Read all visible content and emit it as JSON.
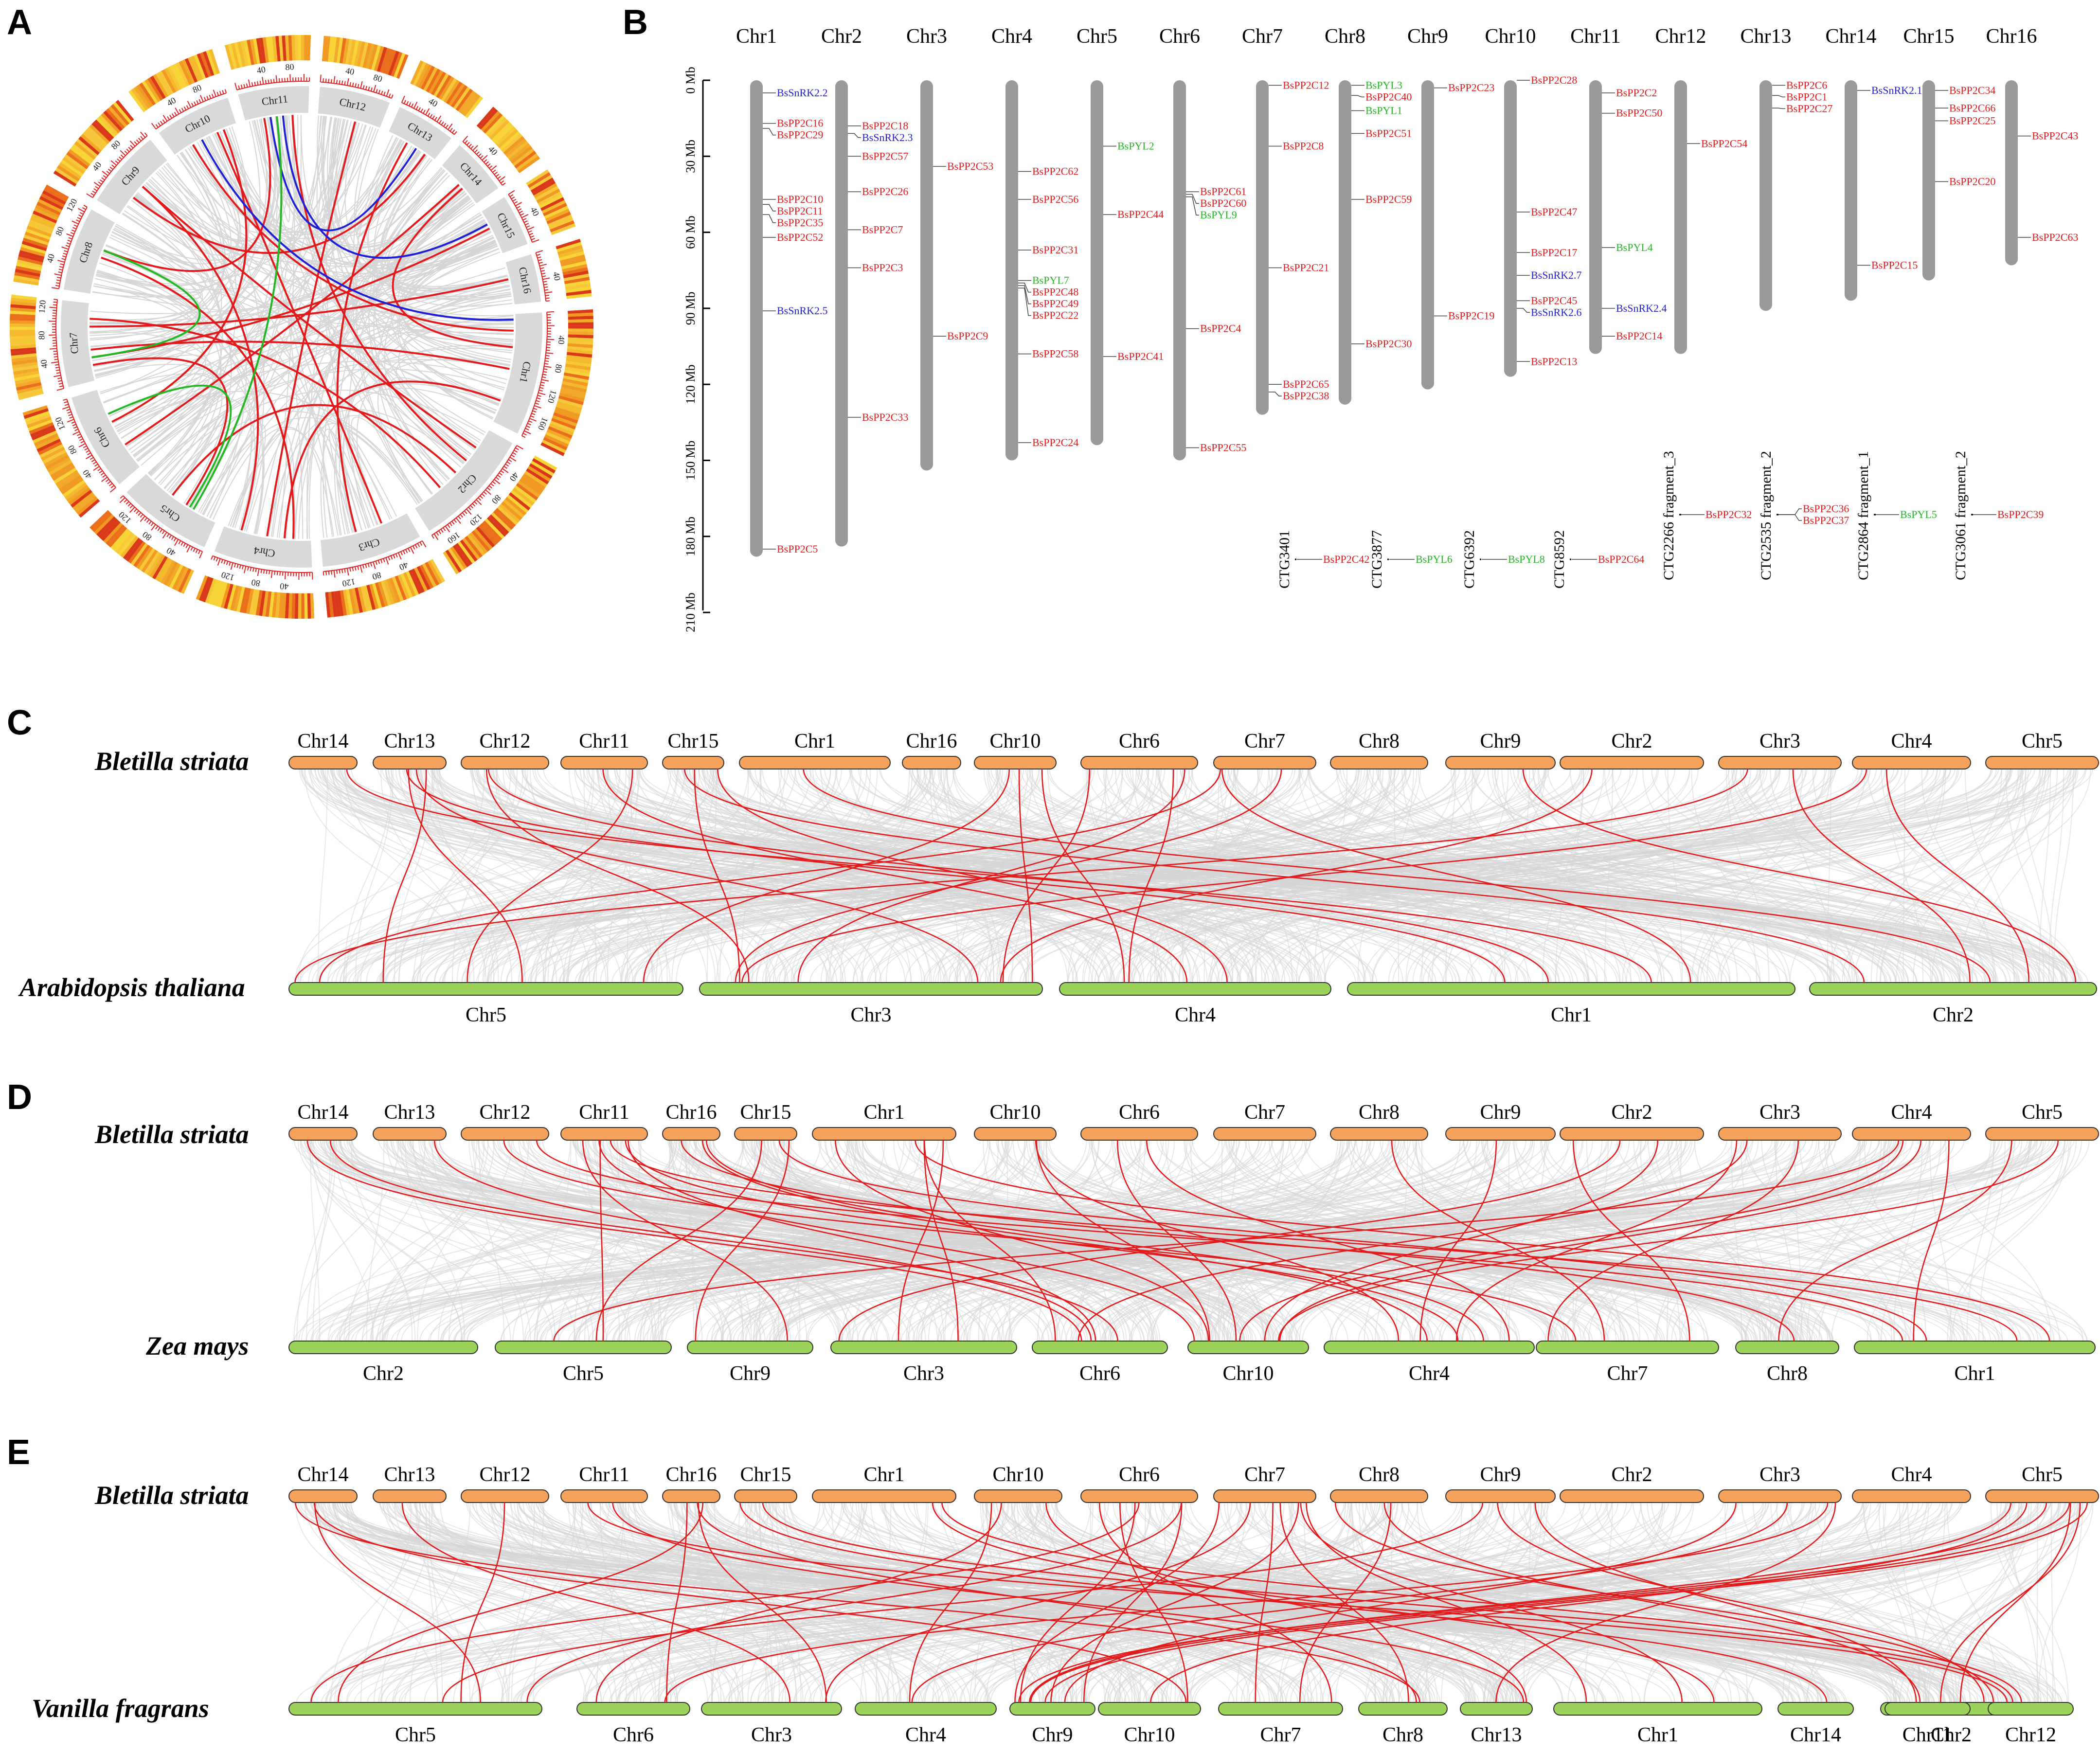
{
  "panels": {
    "a": {
      "letter": "A",
      "chromosomes": [
        {
          "name": "Chr1",
          "ticks": [
            "40",
            "80",
            "120",
            "160"
          ]
        },
        {
          "name": "Chr2",
          "ticks": [
            "40",
            "80",
            "120",
            "160"
          ]
        },
        {
          "name": "Chr3",
          "ticks": [
            "40",
            "80",
            "120"
          ]
        },
        {
          "name": "Chr4",
          "ticks": [
            "40",
            "80",
            "120"
          ]
        },
        {
          "name": "Chr5",
          "ticks": [
            "40",
            "80",
            "120"
          ]
        },
        {
          "name": "Chr6",
          "ticks": [
            "40",
            "80",
            "120"
          ]
        },
        {
          "name": "Chr7",
          "ticks": [
            "40",
            "80",
            "120"
          ]
        },
        {
          "name": "Chr8",
          "ticks": [
            "40",
            "80",
            "120"
          ]
        },
        {
          "name": "Chr9",
          "ticks": [
            "40",
            "80"
          ]
        },
        {
          "name": "Chr10",
          "ticks": [
            "40",
            "80"
          ]
        },
        {
          "name": "Chr11",
          "ticks": [
            "40",
            "80"
          ]
        },
        {
          "name": "Chr12",
          "ticks": [
            "40",
            "80"
          ]
        },
        {
          "name": "Chr13",
          "ticks": [
            "40"
          ]
        },
        {
          "name": "Chr14",
          "ticks": [
            "40"
          ]
        },
        {
          "name": "Chr15",
          "ticks": [
            "40"
          ]
        },
        {
          "name": "Chr16",
          "ticks": [
            "40"
          ]
        }
      ],
      "colors": {
        "PP2C": "#cc0000",
        "SnRK2": "#1a1acc",
        "PYL": "#16a34a",
        "background_link": "#dddddd"
      }
    },
    "b": {
      "letter": "B",
      "axis": {
        "ticks": [
          "0 Mb",
          "30 Mb",
          "60 Mb",
          "90 Mb",
          "120 Mb",
          "150 Mb",
          "180 Mb",
          "210 Mb"
        ]
      },
      "chromosomes": [
        {
          "name": "Chr1",
          "length_mb": 188,
          "genes": [
            {
              "name": "BsSnRK2.2",
              "pos": 5,
              "family": "SnRK2"
            },
            {
              "name": "BsPP2C16",
              "pos": 17,
              "family": "PP2C"
            },
            {
              "name": "BsPP2C29",
              "pos": 19,
              "family": "PP2C"
            },
            {
              "name": "BsPP2C10",
              "pos": 47,
              "family": "PP2C"
            },
            {
              "name": "BsPP2C11",
              "pos": 49,
              "family": "PP2C"
            },
            {
              "name": "BsPP2C35",
              "pos": 53,
              "family": "PP2C"
            },
            {
              "name": "BsPP2C52",
              "pos": 62,
              "family": "PP2C"
            },
            {
              "name": "BsSnRK2.5",
              "pos": 91,
              "family": "SnRK2"
            },
            {
              "name": "BsPP2C5",
              "pos": 185,
              "family": "PP2C"
            }
          ]
        },
        {
          "name": "Chr2",
          "length_mb": 184,
          "genes": [
            {
              "name": "BsPP2C18",
              "pos": 18,
              "family": "PP2C"
            },
            {
              "name": "BsSnRK2.3",
              "pos": 21,
              "family": "SnRK2"
            },
            {
              "name": "BsPP2C57",
              "pos": 30,
              "family": "PP2C"
            },
            {
              "name": "BsPP2C26",
              "pos": 44,
              "family": "PP2C"
            },
            {
              "name": "BsPP2C7",
              "pos": 59,
              "family": "PP2C"
            },
            {
              "name": "BsPP2C3",
              "pos": 74,
              "family": "PP2C"
            },
            {
              "name": "BsPP2C33",
              "pos": 133,
              "family": "PP2C"
            }
          ]
        },
        {
          "name": "Chr3",
          "length_mb": 154,
          "genes": [
            {
              "name": "BsPP2C53",
              "pos": 34,
              "family": "PP2C"
            },
            {
              "name": "BsPP2C9",
              "pos": 101,
              "family": "PP2C"
            }
          ]
        },
        {
          "name": "Chr4",
          "length_mb": 150,
          "genes": [
            {
              "name": "BsPP2C62",
              "pos": 36,
              "family": "PP2C"
            },
            {
              "name": "BsPP2C56",
              "pos": 47,
              "family": "PP2C"
            },
            {
              "name": "BsPP2C31",
              "pos": 67,
              "family": "PP2C"
            },
            {
              "name": "BsPYL7",
              "pos": 79,
              "family": "PYL"
            },
            {
              "name": "BsPP2C48",
              "pos": 80,
              "family": "PP2C"
            },
            {
              "name": "BsPP2C49",
              "pos": 81,
              "family": "PP2C"
            },
            {
              "name": "BsPP2C22",
              "pos": 82,
              "family": "PP2C"
            },
            {
              "name": "BsPP2C58",
              "pos": 108,
              "family": "PP2C"
            },
            {
              "name": "BsPP2C24",
              "pos": 143,
              "family": "PP2C"
            }
          ]
        },
        {
          "name": "Chr5",
          "length_mb": 144,
          "genes": [
            {
              "name": "BsPYL2",
              "pos": 26,
              "family": "PYL"
            },
            {
              "name": "BsPP2C44",
              "pos": 53,
              "family": "PP2C"
            },
            {
              "name": "BsPP2C41",
              "pos": 109,
              "family": "PP2C"
            }
          ]
        },
        {
          "name": "Chr6",
          "length_mb": 150,
          "genes": [
            {
              "name": "BsPP2C61",
              "pos": 44,
              "family": "PP2C"
            },
            {
              "name": "BsPP2C60",
              "pos": 45,
              "family": "PP2C"
            },
            {
              "name": "BsPYL9",
              "pos": 46,
              "family": "PYL"
            },
            {
              "name": "BsPP2C4",
              "pos": 98,
              "family": "PP2C"
            },
            {
              "name": "BsPP2C55",
              "pos": 145,
              "family": "PP2C"
            }
          ]
        },
        {
          "name": "Chr7",
          "length_mb": 132,
          "genes": [
            {
              "name": "BsPP2C12",
              "pos": 2,
              "family": "PP2C"
            },
            {
              "name": "BsPP2C8",
              "pos": 26,
              "family": "PP2C"
            },
            {
              "name": "BsPP2C21",
              "pos": 74,
              "family": "PP2C"
            },
            {
              "name": "BsPP2C65",
              "pos": 120,
              "family": "PP2C"
            },
            {
              "name": "BsPP2C38",
              "pos": 123,
              "family": "PP2C"
            }
          ]
        },
        {
          "name": "Chr8",
          "length_mb": 128,
          "genes": [
            {
              "name": "BsPYL3",
              "pos": 2,
              "family": "PYL"
            },
            {
              "name": "BsPP2C40",
              "pos": 6,
              "family": "PP2C"
            },
            {
              "name": "BsPYL1",
              "pos": 12,
              "family": "PYL"
            },
            {
              "name": "BsPP2C51",
              "pos": 21,
              "family": "PP2C"
            },
            {
              "name": "BsPP2C59",
              "pos": 47,
              "family": "PP2C"
            },
            {
              "name": "BsPP2C30",
              "pos": 104,
              "family": "PP2C"
            }
          ]
        },
        {
          "name": "Chr9",
          "length_mb": 122,
          "genes": [
            {
              "name": "BsPP2C23",
              "pos": 3,
              "family": "PP2C"
            },
            {
              "name": "BsPP2C19",
              "pos": 93,
              "family": "PP2C"
            }
          ]
        },
        {
          "name": "Chr10",
          "length_mb": 117,
          "genes": [
            {
              "name": "BsPP2C28",
              "pos": 0,
              "family": "PP2C"
            },
            {
              "name": "BsPP2C47",
              "pos": 52,
              "family": "PP2C"
            },
            {
              "name": "BsPP2C17",
              "pos": 68,
              "family": "PP2C"
            },
            {
              "name": "BsSnRK2.7",
              "pos": 77,
              "family": "SnRK2"
            },
            {
              "name": "BsPP2C45",
              "pos": 87,
              "family": "PP2C"
            },
            {
              "name": "BsSnRK2.6",
              "pos": 90,
              "family": "SnRK2"
            },
            {
              "name": "BsPP2C13",
              "pos": 111,
              "family": "PP2C"
            }
          ]
        },
        {
          "name": "Chr11",
          "length_mb": 108,
          "genes": [
            {
              "name": "BsPP2C2",
              "pos": 5,
              "family": "PP2C"
            },
            {
              "name": "BsPP2C50",
              "pos": 13,
              "family": "PP2C"
            },
            {
              "name": "BsPYL4",
              "pos": 66,
              "family": "PYL"
            },
            {
              "name": "BsSnRK2.4",
              "pos": 90,
              "family": "SnRK2"
            },
            {
              "name": "BsPP2C14",
              "pos": 101,
              "family": "PP2C"
            }
          ]
        },
        {
          "name": "Chr12",
          "length_mb": 108,
          "genes": [
            {
              "name": "BsPP2C54",
              "pos": 25,
              "family": "PP2C"
            }
          ]
        },
        {
          "name": "Chr13",
          "length_mb": 91,
          "genes": [
            {
              "name": "BsPP2C6",
              "pos": 2,
              "family": "PP2C"
            },
            {
              "name": "BsPP2C1",
              "pos": 6,
              "family": "PP2C"
            },
            {
              "name": "BsPP2C27",
              "pos": 11,
              "family": "PP2C"
            }
          ]
        },
        {
          "name": "Chr14",
          "length_mb": 87,
          "genes": [
            {
              "name": "BsSnRK2.1",
              "pos": 4,
              "family": "SnRK2"
            },
            {
              "name": "BsPP2C15",
              "pos": 73,
              "family": "PP2C"
            }
          ]
        },
        {
          "name": "Chr15",
          "length_mb": 79,
          "genes": [
            {
              "name": "BsPP2C34",
              "pos": 4,
              "family": "PP2C"
            },
            {
              "name": "BsPP2C66",
              "pos": 11,
              "family": "PP2C"
            },
            {
              "name": "BsPP2C25",
              "pos": 16,
              "family": "PP2C"
            },
            {
              "name": "BsPP2C20",
              "pos": 40,
              "family": "PP2C"
            }
          ]
        },
        {
          "name": "Chr16",
          "length_mb": 73,
          "genes": [
            {
              "name": "BsPP2C43",
              "pos": 22,
              "family": "PP2C"
            },
            {
              "name": "BsPP2C63",
              "pos": 62,
              "family": "PP2C"
            }
          ]
        }
      ],
      "contigs": [
        {
          "name": "CTG3401",
          "gene": "BsPP2C42",
          "family": "PP2C"
        },
        {
          "name": "CTG3877",
          "gene": "BsPYL6",
          "family": "PYL"
        },
        {
          "name": "CTG6392",
          "gene": "BsPYL8",
          "family": "PYL"
        },
        {
          "name": "CTG8592",
          "gene": "BsPP2C64",
          "family": "PP2C"
        }
      ],
      "fragments": [
        {
          "name": "CTG2266 fragment_3",
          "genes": [
            {
              "name": "BsPP2C32",
              "family": "PP2C"
            }
          ]
        },
        {
          "name": "CTG2535 fragment_2",
          "genes": [
            {
              "name": "BsPP2C36",
              "family": "PP2C"
            },
            {
              "name": "BsPP2C37",
              "family": "PP2C"
            }
          ]
        },
        {
          "name": "CTG2864 fragment_1",
          "genes": [
            {
              "name": "BsPYL5",
              "family": "PYL"
            }
          ]
        },
        {
          "name": "CTG3061 fragment_2",
          "genes": [
            {
              "name": "BsPP2C39",
              "family": "PP2C"
            }
          ]
        }
      ]
    },
    "c": {
      "letter": "C",
      "top_species": "Bletilla striata",
      "bottom_species": "Arabidopsis thaliana",
      "top_chrs": [
        "Chr14",
        "Chr13",
        "Chr12",
        "Chr11",
        "Chr15",
        "Chr1",
        "Chr16",
        "Chr10",
        "Chr6",
        "Chr7",
        "Chr8",
        "Chr9",
        "Chr2",
        "Chr3",
        "Chr4",
        "Chr5"
      ],
      "bottom_chrs": [
        "Chr5",
        "Chr3",
        "Chr4",
        "Chr1",
        "Chr2"
      ]
    },
    "d": {
      "letter": "D",
      "top_species": "Bletilla striata",
      "bottom_species": "Zea mays",
      "top_chrs": [
        "Chr14",
        "Chr13",
        "Chr12",
        "Chr11",
        "Chr16",
        "Chr15",
        "Chr1",
        "Chr10",
        "Chr6",
        "Chr7",
        "Chr8",
        "Chr9",
        "Chr2",
        "Chr3",
        "Chr4",
        "Chr5"
      ],
      "bottom_chrs": [
        "Chr2",
        "Chr5",
        "Chr9",
        "Chr3",
        "Chr6",
        "Chr10",
        "Chr4",
        "Chr7",
        "Chr8",
        "Chr1"
      ]
    },
    "e": {
      "letter": "E",
      "top_species": "Bletilla striata",
      "bottom_species": "Vanilla fragrans",
      "top_chrs": [
        "Chr14",
        "Chr13",
        "Chr12",
        "Chr11",
        "Chr16",
        "Chr15",
        "Chr1",
        "Chr10",
        "Chr6",
        "Chr7",
        "Chr8",
        "Chr9",
        "Chr2",
        "Chr3",
        "Chr4",
        "Chr5"
      ],
      "bottom_chrs": [
        "Chr5",
        "Chr6",
        "Chr3",
        "Chr4",
        "Chr9",
        "Chr10",
        "Chr7",
        "Chr8",
        "Chr13",
        "Chr1",
        "Chr14",
        "Chr2",
        "Chr11",
        "Chr12"
      ]
    }
  },
  "colors": {
    "pp2c": "#e31a1c",
    "snrk2": "#1f1fd6",
    "pyl": "#22b822",
    "chrom_gray": "#9a9a9a",
    "bs_orange": "#f5a25d",
    "other_green": "#9bd35b",
    "synteny_gray": "#d6d6d6",
    "synteny_red": "#e31a1c"
  }
}
